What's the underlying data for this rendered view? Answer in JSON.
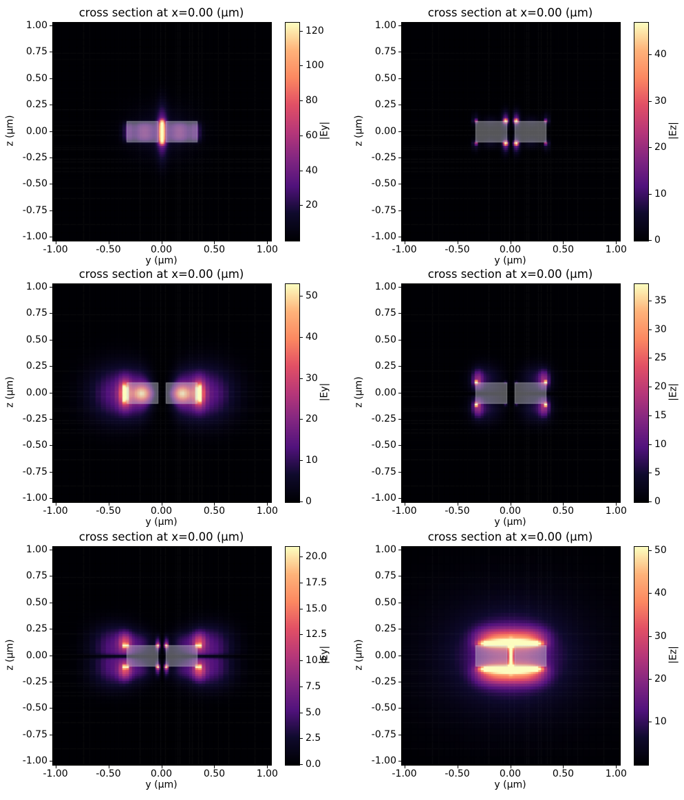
{
  "figure": {
    "background": "#ffffff",
    "description": "3x2 grid of waveguide cross-section mode-field heatmaps"
  },
  "chart_data": {
    "type": "heatmap",
    "colormap": "magma",
    "colormap_stops": [
      "#000004",
      "#0f0a2d",
      "#51127c",
      "#822681",
      "#b73779",
      "#e25065",
      "#fc8961",
      "#feb37a",
      "#fcfdbf"
    ],
    "structure_overlay_color": "rgba(205,205,210,0.42)",
    "common": {
      "xlabel": "y (μm)",
      "ylabel": "z (μm)",
      "x_range": [
        -1.03,
        1.03
      ],
      "y_range": [
        -1.03,
        1.03
      ],
      "grid": false,
      "x_ticks": [
        {
          "v": -1.0,
          "label": "-1.00"
        },
        {
          "v": -0.5,
          "label": "-0.50"
        },
        {
          "v": 0.0,
          "label": "0.00"
        },
        {
          "v": 0.5,
          "label": "0.50"
        },
        {
          "v": 1.0,
          "label": "1.00"
        }
      ],
      "y_ticks": [
        {
          "v": 1.0,
          "label": "1.00"
        },
        {
          "v": 0.75,
          "label": "0.75"
        },
        {
          "v": 0.5,
          "label": "0.50"
        },
        {
          "v": 0.25,
          "label": "0.25"
        },
        {
          "v": 0.0,
          "label": "0.00"
        },
        {
          "v": -0.25,
          "label": "-0.25"
        },
        {
          "v": -0.5,
          "label": "-0.50"
        },
        {
          "v": -0.75,
          "label": "-0.75"
        },
        {
          "v": -1.0,
          "label": "-1.00"
        }
      ],
      "structure": {
        "rails_y": [
          [
            -0.335,
            -0.035
          ],
          [
            0.035,
            0.335
          ]
        ],
        "rails_z": [
          -0.1,
          0.1
        ]
      }
    },
    "panels": [
      {
        "panel": "row0-col0",
        "title": "cross section at x=0.00 (μm)",
        "description": "fundamental mode |Ey|: intense narrow hot spot filling the slot at y=0, soft purple field in both rails and halo around the guide",
        "colorbar": {
          "label": "|Ey|",
          "vmin": 0,
          "vmax": 125,
          "ticks": [
            {
              "v": 20,
              "label": "20"
            },
            {
              "v": 40,
              "label": "40"
            },
            {
              "v": 60,
              "label": "60"
            },
            {
              "v": 80,
              "label": "80"
            },
            {
              "v": 100,
              "label": "100"
            },
            {
              "v": 120,
              "label": "120"
            }
          ]
        },
        "field_model": {
          "components": [
            {
              "y": 0,
              "z": 0,
              "sy": 0.026,
              "sz": 0.115,
              "pz": 6,
              "amp": 125
            },
            {
              "y": 0,
              "z": 0,
              "sy": 0.05,
              "sz": 0.24,
              "amp": 38
            },
            {
              "y": 0.17,
              "z": 0,
              "sy": 0.1,
              "sz": 0.09,
              "pz": 4,
              "amp": 36,
              "mirror_y": true
            },
            {
              "y": 0.32,
              "z": 0,
              "sy": 0.05,
              "sz": 0.095,
              "pz": 4,
              "amp": 26,
              "mirror_y": true
            },
            {
              "y": 0,
              "z": 0,
              "sy": 0.3,
              "sz": 0.23,
              "amp": 13
            }
          ],
          "multipliers": []
        }
      },
      {
        "panel": "row0-col1",
        "title": "cross section at x=0.00 (μm)",
        "description": "fundamental mode |Ez|: four bright spots at the slot corners, weaker spots at the outer rail corners, dark slit at y=0",
        "colorbar": {
          "label": "|Ez|",
          "vmin": 0,
          "vmax": 47,
          "ticks": [
            {
              "v": 0,
              "label": "0"
            },
            {
              "v": 10,
              "label": "10"
            },
            {
              "v": 20,
              "label": "20"
            },
            {
              "v": 30,
              "label": "30"
            },
            {
              "v": 40,
              "label": "40"
            }
          ]
        },
        "field_model": {
          "components": [
            {
              "y": 0.05,
              "z": 0.105,
              "sy": 0.02,
              "sz": 0.018,
              "amp": 46,
              "mirror_y": true,
              "mirror_z": true
            },
            {
              "y": 0.05,
              "z": 0.12,
              "sy": 0.035,
              "sz": 0.08,
              "amp": 13,
              "mirror_y": true,
              "mirror_z": true
            },
            {
              "y": 0.335,
              "z": 0.105,
              "sy": 0.018,
              "sz": 0.016,
              "amp": 19,
              "mirror_y": true,
              "mirror_z": true
            },
            {
              "y": 0.335,
              "z": 0.12,
              "sy": 0.03,
              "sz": 0.06,
              "amp": 6,
              "mirror_y": true,
              "mirror_z": true
            },
            {
              "y": 0.19,
              "z": 0.105,
              "sy": 0.08,
              "sz": 0.05,
              "amp": 4,
              "mirror_y": true,
              "mirror_z": true
            }
          ],
          "multipliers": [
            {
              "kind": "notch_y",
              "w": 0.014,
              "a": 0.95
            },
            {
              "kind": "notch_z",
              "w": 0.015,
              "a": 0.5
            }
          ]
        }
      },
      {
        "panel": "row1-col0",
        "title": "cross section at x=0.00 (μm)",
        "description": "second mode |Ey|: antisymmetric, bright vertical stripes at the outer rail edges, orange blobs inside the rails, dark hourglass waist at y=0",
        "colorbar": {
          "label": "|Ey|",
          "vmin": 0,
          "vmax": 53,
          "ticks": [
            {
              "v": 0,
              "label": "0"
            },
            {
              "v": 10,
              "label": "10"
            },
            {
              "v": 20,
              "label": "20"
            },
            {
              "v": 30,
              "label": "30"
            },
            {
              "v": 40,
              "label": "40"
            },
            {
              "v": 50,
              "label": "50"
            }
          ]
        },
        "field_model": {
          "components": [
            {
              "y": 0.345,
              "z": 0,
              "sy": 0.016,
              "sz": 0.085,
              "pz": 4,
              "amp": 53,
              "mirror_y": true
            },
            {
              "y": 0.35,
              "z": 0,
              "sy": 0.06,
              "sz": 0.13,
              "amp": 28,
              "mirror_y": true
            },
            {
              "y": 0.19,
              "z": 0,
              "sy": 0.08,
              "sz": 0.07,
              "amp": 33,
              "mirror_y": true
            },
            {
              "y": 0.4,
              "z": 0,
              "sy": 0.27,
              "sz": 0.25,
              "amp": 16,
              "mirror_y": true
            },
            {
              "y": 0.18,
              "z": 0,
              "sy": 0.12,
              "sz": 0.2,
              "amp": 10,
              "mirror_y": true
            }
          ],
          "multipliers": [
            {
              "kind": "notch_y",
              "w": 0.06,
              "grow": 0.3,
              "a": 1
            }
          ]
        }
      },
      {
        "panel": "row1-col1",
        "title": "cross section at x=0.00 (μm)",
        "description": "second mode |Ez|: four bright spots at the outer rail corners with purple plumes, dark horizontal line at z=0 and dark slot",
        "colorbar": {
          "label": "|Ez|",
          "vmin": 0,
          "vmax": 38,
          "ticks": [
            {
              "v": 0,
              "label": "0"
            },
            {
              "v": 5,
              "label": "5"
            },
            {
              "v": 10,
              "label": "10"
            },
            {
              "v": 15,
              "label": "15"
            },
            {
              "v": 20,
              "label": "20"
            },
            {
              "v": 25,
              "label": "25"
            },
            {
              "v": 30,
              "label": "30"
            },
            {
              "v": 35,
              "label": "35"
            }
          ]
        },
        "field_model": {
          "components": [
            {
              "y": 0.325,
              "z": 0.105,
              "sy": 0.018,
              "sz": 0.016,
              "amp": 38,
              "mirror_y": true,
              "mirror_z": true
            },
            {
              "y": 0.315,
              "z": 0.13,
              "sy": 0.05,
              "sz": 0.09,
              "amp": 12,
              "mirror_y": true,
              "mirror_z": true
            },
            {
              "y": 0.24,
              "z": 0.14,
              "sy": 0.14,
              "sz": 0.13,
              "amp": 6,
              "mirror_y": true,
              "mirror_z": true
            },
            {
              "y": 0.05,
              "z": 0.105,
              "sy": 0.018,
              "sz": 0.016,
              "amp": 7,
              "mirror_y": true,
              "mirror_z": true
            }
          ],
          "multipliers": [
            {
              "kind": "notch_z",
              "w": 0.02,
              "a": 0.9
            },
            {
              "kind": "notch_y",
              "w": 0.03,
              "a": 0.85
            }
          ]
        }
      },
      {
        "panel": "row2-col0",
        "title": "cross section at x=0.00 (μm)",
        "description": "third mode |Ey|: bright spots at all four outer rail corners plus small spot pairs flanking the slot corners, dark lines at y=0 and z=0",
        "colorbar": {
          "label": "|Ey|",
          "vmin": 0,
          "vmax": 21,
          "ticks": [
            {
              "v": 0,
              "label": "0.0"
            },
            {
              "v": 2.5,
              "label": "2.5"
            },
            {
              "v": 5,
              "label": "5.0"
            },
            {
              "v": 7.5,
              "label": "7.5"
            },
            {
              "v": 10,
              "label": "10.0"
            },
            {
              "v": 12.5,
              "label": "12.5"
            },
            {
              "v": 15,
              "label": "15.0"
            },
            {
              "v": 17.5,
              "label": "17.5"
            },
            {
              "v": 20,
              "label": "20.0"
            }
          ]
        },
        "field_model": {
          "components": [
            {
              "y": 0.345,
              "z": 0.1,
              "sy": 0.02,
              "sz": 0.018,
              "amp": 21,
              "mirror_y": true,
              "mirror_z": true
            },
            {
              "y": 0.35,
              "z": 0.13,
              "sy": 0.06,
              "sz": 0.09,
              "amp": 8,
              "mirror_y": true,
              "mirror_z": true
            },
            {
              "y": 0.04,
              "z": 0.1,
              "sy": 0.016,
              "sz": 0.016,
              "amp": 17,
              "mirror_y": true,
              "mirror_z": true
            },
            {
              "y": 0.04,
              "z": 0.11,
              "sy": 0.022,
              "sz": 0.07,
              "amp": 7,
              "mirror_y": true,
              "mirror_z": true
            },
            {
              "y": 0.44,
              "z": 0.13,
              "sy": 0.22,
              "sz": 0.17,
              "amp": 5,
              "mirror_y": true,
              "mirror_z": true
            },
            {
              "y": 0.2,
              "z": 0.13,
              "sy": 0.12,
              "sz": 0.1,
              "amp": 3,
              "mirror_y": true,
              "mirror_z": true
            }
          ],
          "multipliers": [
            {
              "kind": "notch_z",
              "w": 0.018,
              "a": 0.85
            },
            {
              "kind": "notch_y",
              "w": 0.012,
              "a": 0.95
            }
          ]
        }
      },
      {
        "panel": "row2-col1",
        "title": "cross section at x=0.00 (μm)",
        "description": "third mode |Ez|: broad bright orange bands hugging the top and bottom slab surfaces, bright slot line, wide purple halo",
        "colorbar": {
          "label": "|Ez|",
          "vmin": 0,
          "vmax": 51,
          "ticks": [
            {
              "v": 10,
              "label": "10"
            },
            {
              "v": 20,
              "label": "20"
            },
            {
              "v": 30,
              "label": "30"
            },
            {
              "v": 40,
              "label": "40"
            },
            {
              "v": 50,
              "label": "50"
            }
          ]
        },
        "field_model": {
          "components": [
            {
              "y": 0,
              "z": 0.12,
              "sy": 0.29,
              "py": 6,
              "sz": 0.028,
              "amp": 51,
              "mirror_z": true
            },
            {
              "y": 0,
              "z": 0.16,
              "sy": 0.32,
              "py": 4,
              "sz": 0.1,
              "amp": 26,
              "mirror_z": true
            },
            {
              "y": 0,
              "z": 0,
              "sy": 0.02,
              "sz": 0.15,
              "pz": 4,
              "amp": 32
            },
            {
              "y": 0,
              "z": 0,
              "sy": 0.42,
              "sz": 0.33,
              "amp": 14
            },
            {
              "y": 0,
              "z": 0,
              "sy": 0.8,
              "sz": 0.62,
              "amp": 6
            }
          ],
          "multipliers": []
        }
      }
    ]
  }
}
